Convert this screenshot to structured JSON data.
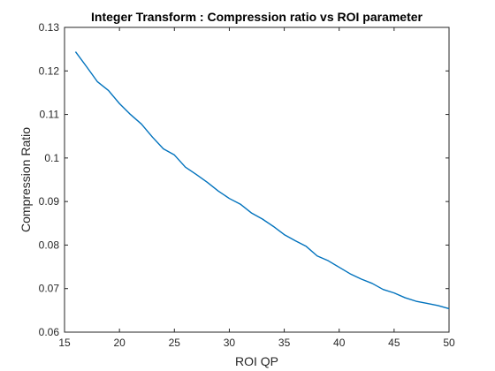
{
  "chart_data": {
    "type": "line",
    "title": "Integer Transform : Compression ratio vs ROI parameter",
    "xlabel": "ROI QP",
    "ylabel": "Compression Ratio",
    "xlim": [
      15,
      50
    ],
    "ylim": [
      0.06,
      0.13
    ],
    "x_ticks": [
      15,
      20,
      25,
      30,
      35,
      40,
      45,
      50
    ],
    "y_ticks": [
      0.06,
      0.07,
      0.08,
      0.09,
      0.1,
      0.11,
      0.12,
      0.13
    ],
    "x_tick_labels": [
      "15",
      "20",
      "25",
      "30",
      "35",
      "40",
      "45",
      "50"
    ],
    "y_tick_labels": [
      "0.06",
      "0.07",
      "0.08",
      "0.09",
      "0.1",
      "0.11",
      "0.12",
      "0.13"
    ],
    "grid": false,
    "legend": "none",
    "series": [
      {
        "color": "#0072bd",
        "x": [
          16,
          17,
          18,
          19,
          20,
          21,
          22,
          23,
          24,
          25,
          26,
          27,
          28,
          29,
          30,
          31,
          32,
          33,
          34,
          35,
          36,
          37,
          38,
          39,
          40,
          41,
          42,
          43,
          44,
          45,
          46,
          47,
          48,
          49,
          50
        ],
        "values": [
          0.1244,
          0.121,
          0.1175,
          0.1155,
          0.1125,
          0.11,
          0.1078,
          0.1048,
          0.1021,
          0.1007,
          0.0979,
          0.0962,
          0.0944,
          0.0924,
          0.0907,
          0.0894,
          0.0874,
          0.086,
          0.0843,
          0.0824,
          0.081,
          0.0797,
          0.0775,
          0.0764,
          0.0749,
          0.0734,
          0.0722,
          0.0712,
          0.0698,
          0.069,
          0.0679,
          0.0671,
          0.0666,
          0.0661,
          0.0654
        ]
      }
    ]
  }
}
